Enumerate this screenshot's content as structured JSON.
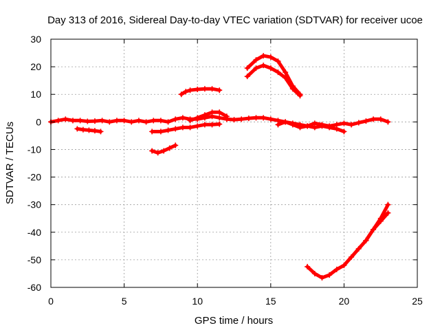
{
  "chart_data": {
    "type": "line",
    "title": "Day 313 of 2016, Sidereal Day-to-day VTEC variation (SDTVAR) for receiver ucoe",
    "xlabel": "GPS time / hours",
    "ylabel": "SDTVAR / TECUs",
    "xlim": [
      0,
      25
    ],
    "ylim": [
      -60,
      30
    ],
    "xticks": [
      0,
      5,
      10,
      15,
      20,
      25
    ],
    "yticks": [
      30,
      20,
      10,
      0,
      -10,
      -20,
      -30,
      -40,
      -50,
      -60
    ],
    "grid": true,
    "marker": "plus",
    "color": "#ff0000",
    "series": [
      {
        "name": "s1",
        "x": [
          0,
          0.5,
          1,
          1.5,
          2,
          2.5,
          3,
          3.5,
          4,
          4.5,
          5,
          5.5,
          6,
          6.5,
          7,
          7.5,
          8,
          8.5,
          9,
          9.5,
          10,
          10.5,
          11,
          11.5,
          12,
          12.5,
          13,
          13.5,
          14,
          14.5,
          15,
          15.5,
          16,
          16.5,
          17,
          17.5,
          18,
          18.5,
          19,
          19.5,
          20,
          20.5,
          21,
          21.5,
          22,
          22.5,
          23
        ],
        "y": [
          0,
          0.5,
          1,
          0.5,
          0.5,
          0.2,
          0.3,
          0.5,
          0,
          0.5,
          0.5,
          0,
          0.5,
          0,
          0.5,
          0.5,
          0,
          1,
          1.5,
          1,
          1,
          1.5,
          2,
          1.5,
          1,
          0.8,
          1,
          1.3,
          1.5,
          1.5,
          1,
          0.5,
          0,
          -0.5,
          -1,
          -1.5,
          -0.5,
          -1,
          -1.5,
          -1,
          -0.5,
          -1,
          -0.3,
          0.3,
          1,
          1,
          0
        ]
      },
      {
        "name": "s2",
        "x": [
          1.8,
          2.2,
          2.6,
          3.0,
          3.4
        ],
        "y": [
          -2.5,
          -2.8,
          -3.0,
          -3.2,
          -3.5
        ]
      },
      {
        "name": "s3",
        "x": [
          6.9,
          7.3,
          7.7,
          8.1,
          8.5
        ],
        "y": [
          -10.5,
          -11.2,
          -10.5,
          -9.5,
          -8.5
        ]
      },
      {
        "name": "s4",
        "x": [
          6.9,
          7.5,
          8,
          8.5,
          9,
          9.5,
          10,
          10.5,
          11,
          11.5
        ],
        "y": [
          -3.5,
          -3.5,
          -3,
          -2.5,
          -2,
          -2,
          -1.5,
          -1,
          -1,
          -0.8
        ]
      },
      {
        "name": "s5",
        "x": [
          8.9,
          9.2,
          9.5,
          10,
          10.5,
          11,
          11.5
        ],
        "y": [
          10,
          11,
          11.5,
          11.8,
          12,
          12,
          11.5
        ]
      },
      {
        "name": "s6",
        "x": [
          9.5,
          10,
          10.5,
          11,
          11.5,
          12
        ],
        "y": [
          0.5,
          1.5,
          2.5,
          3.5,
          3.5,
          2
        ]
      },
      {
        "name": "s7",
        "x": [
          13.4,
          14,
          14.5,
          15,
          15.5,
          16,
          16.5,
          17
        ],
        "y": [
          19.5,
          22.5,
          24,
          23.5,
          22,
          18,
          13,
          10
        ]
      },
      {
        "name": "s8",
        "x": [
          13.4,
          14,
          14.5,
          15,
          15.5,
          16,
          16.5,
          17
        ],
        "y": [
          16.5,
          19.5,
          20.5,
          19.5,
          18,
          16,
          12,
          9.5
        ]
      },
      {
        "name": "s9",
        "x": [
          15.5,
          16,
          16.5,
          17,
          17.5,
          18,
          18.5,
          19,
          19.5,
          20
        ],
        "y": [
          -1,
          0,
          -1,
          -2,
          -1.5,
          -2,
          -1.5,
          -2,
          -2.5,
          -3.5
        ]
      },
      {
        "name": "s10",
        "x": [
          17.5,
          18,
          18.5,
          19,
          19.5,
          20,
          20.5,
          21,
          21.5,
          22,
          22.5,
          23
        ],
        "y": [
          -52.5,
          -55,
          -56.5,
          -55.5,
          -53.5,
          -52,
          -49,
          -46,
          -43,
          -39,
          -35,
          -30
        ]
      },
      {
        "name": "s11",
        "x": [
          21.5,
          22,
          22.5,
          23
        ],
        "y": [
          -43,
          -39,
          -36,
          -33
        ]
      }
    ]
  }
}
